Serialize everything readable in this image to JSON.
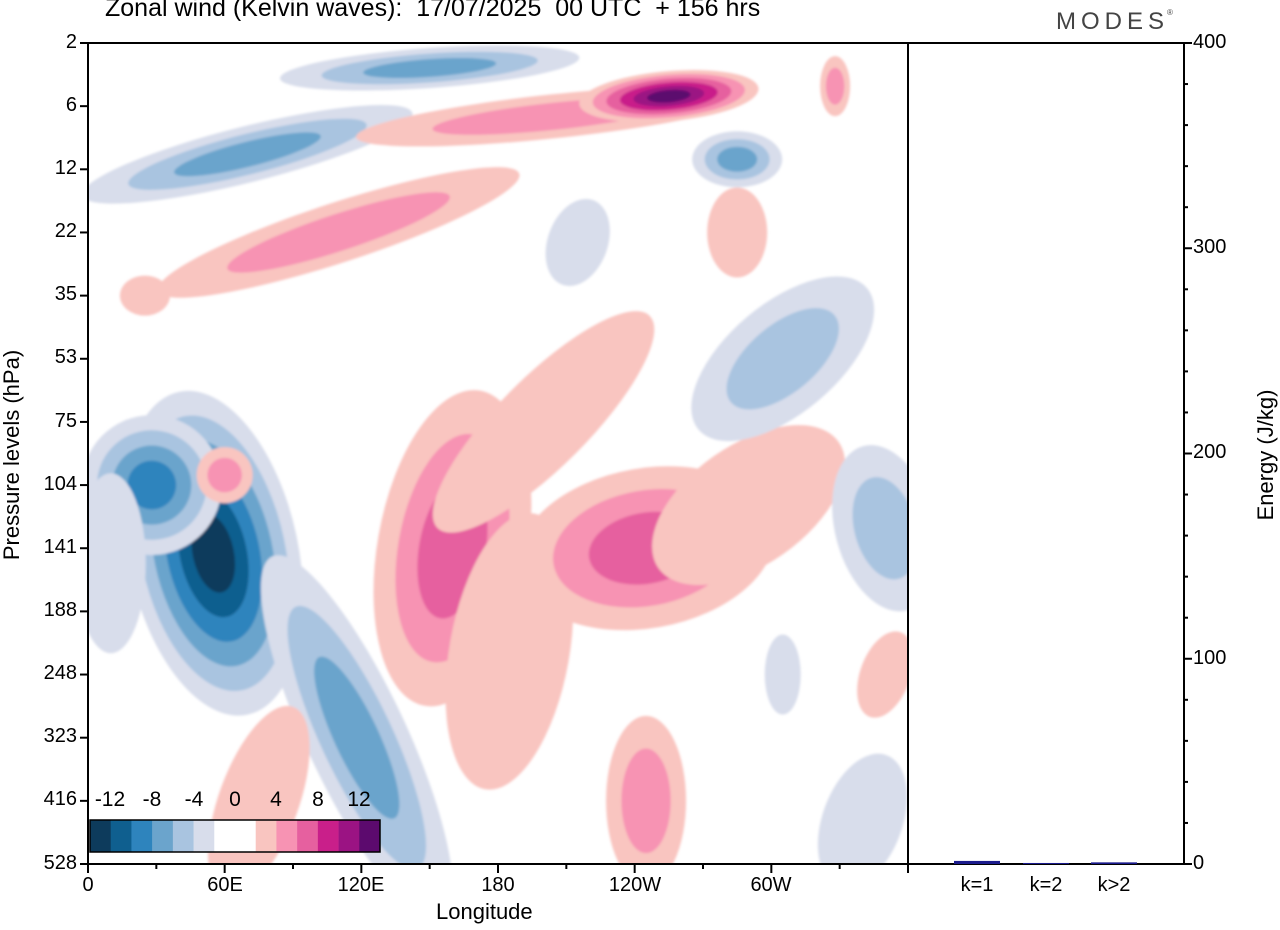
{
  "header": {
    "title": "Zonal wind (Kelvin waves):  17/07/2025  00 UTC  + 156 hrs",
    "brand": "MODES",
    "brand_mark": "®"
  },
  "main_panel": {
    "ylabel": "Pressure levels (hPa)",
    "xlabel": "Longitude",
    "y_ticks": [
      "2",
      "6",
      "12",
      "22",
      "35",
      "53",
      "75",
      "104",
      "141",
      "188",
      "248",
      "323",
      "416",
      "528"
    ],
    "x_ticks": [
      "0",
      "60E",
      "120E",
      "180",
      "120W",
      "60W"
    ]
  },
  "energy_panel": {
    "ylabel": "Energy (J/kg)",
    "y_ticks": [
      "400",
      "300",
      "200",
      "100",
      "0"
    ],
    "bar_color": "#1a1a8c"
  },
  "colorbar": {
    "labels": [
      "-12",
      "-8",
      "-4",
      "0",
      "4",
      "8",
      "12"
    ],
    "colors": [
      "#0d3b5c",
      "#0f5f8f",
      "#2e84bd",
      "#6ba4cc",
      "#a9c4e0",
      "#d8ddeb",
      "#ffffff",
      "#ffffff",
      "#f9c5c0",
      "#f793b3",
      "#e6609f",
      "#c91f8a",
      "#9b1383",
      "#5c0a6e"
    ]
  },
  "chart_data": [
    {
      "type": "heatmap",
      "title": "Zonal wind (Kelvin waves):  17/07/2025  00 UTC  + 156 hrs",
      "xlabel": "Longitude",
      "ylabel": "Pressure levels (hPa)",
      "x_tick_labels": [
        "0",
        "60E",
        "120E",
        "180",
        "120W",
        "60W"
      ],
      "xlim_deg_east": [
        0,
        360
      ],
      "y_levels_hpa": [
        2,
        6,
        12,
        22,
        35,
        53,
        75,
        104,
        141,
        188,
        248,
        323,
        416,
        528
      ],
      "color_levels": [
        -12,
        -10,
        -8,
        -6,
        -4,
        -2,
        0,
        2,
        4,
        6,
        8,
        10,
        12
      ],
      "features": [
        {
          "sign": "negative",
          "lon_center": 55,
          "p_center": 141,
          "peak": -14
        },
        {
          "sign": "negative",
          "lon_center": 30,
          "p_center": 104,
          "peak": -9
        },
        {
          "sign": "negative",
          "lon_center": 85,
          "p_center": 6,
          "peak": -9
        },
        {
          "sign": "negative",
          "lon_center": 120,
          "p_center": 2,
          "peak": -8
        },
        {
          "sign": "negative",
          "lon_center": 285,
          "p_center": 12,
          "peak": -6
        },
        {
          "sign": "negative",
          "lon_center": 355,
          "p_center": 141,
          "peak": -5
        },
        {
          "sign": "positive",
          "lon_center": 165,
          "p_center": 141,
          "peak": 8
        },
        {
          "sign": "positive",
          "lon_center": 260,
          "p_center": 141,
          "peak": 6
        },
        {
          "sign": "positive",
          "lon_center": 245,
          "p_center": 6,
          "peak": 12
        },
        {
          "sign": "positive",
          "lon_center": 280,
          "p_center": 6,
          "peak": 10
        },
        {
          "sign": "positive",
          "lon_center": 60,
          "p_center": 104,
          "peak": 5
        },
        {
          "sign": "positive",
          "lon_center": 250,
          "p_center": 416,
          "peak": 5
        }
      ]
    },
    {
      "type": "bar",
      "ylabel": "Energy (J/kg)",
      "ylim": [
        0,
        400
      ],
      "categories": [
        "k=1",
        "k=2",
        "k>2"
      ],
      "values": [
        1.5,
        0.5,
        0.8
      ]
    }
  ]
}
